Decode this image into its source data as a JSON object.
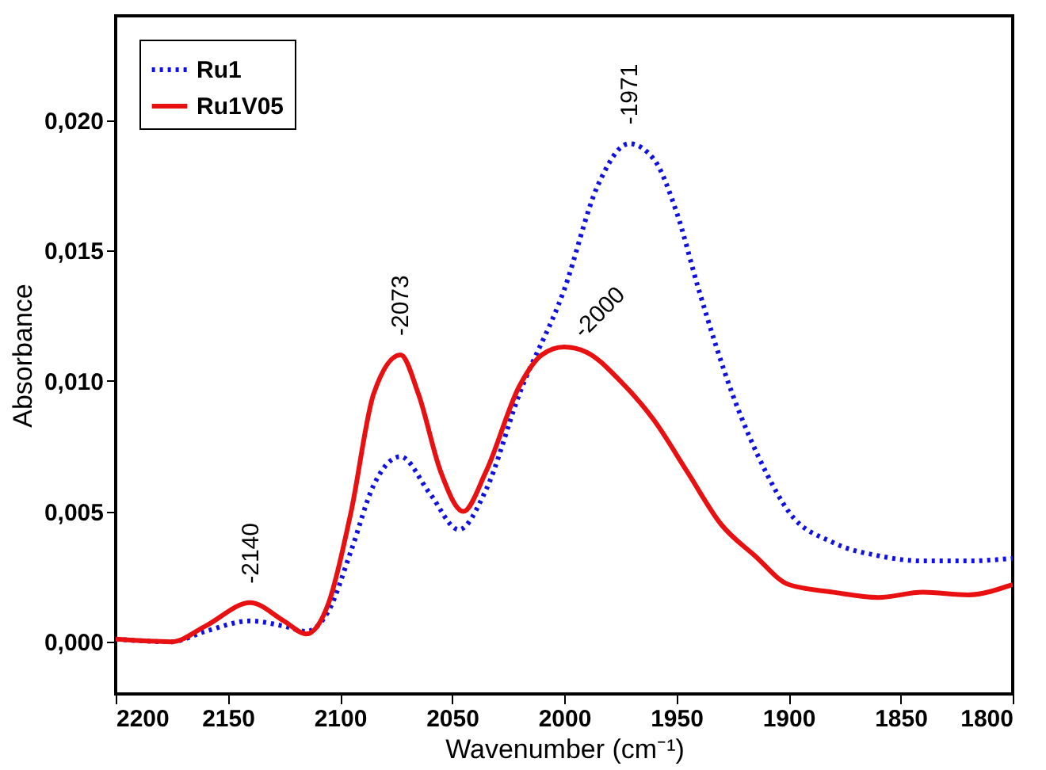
{
  "chart_data": {
    "type": "line",
    "xlabel": "Wavenumber (cm⁻¹)",
    "ylabel": "Absorbance",
    "xlim": [
      2200,
      1800
    ],
    "xticks": [
      2200,
      2150,
      2100,
      2050,
      2000,
      1950,
      1900,
      1850,
      1800
    ],
    "ylim": [
      -0.002,
      0.024
    ],
    "yticks": [
      {
        "value": 0,
        "label": "0,000"
      },
      {
        "value": 0.005,
        "label": "0,005"
      },
      {
        "value": 0.01,
        "label": "0,010"
      },
      {
        "value": 0.015,
        "label": "0,015"
      },
      {
        "value": 0.02,
        "label": "0,020"
      }
    ],
    "legend": "top left",
    "grid": false,
    "marker": "none",
    "series": [
      {
        "name": "Ru1",
        "color": "#1010e0",
        "line_style": "dotted",
        "x": [
          2200,
          2175,
          2160,
          2140,
          2125,
          2115,
          2105,
          2095,
          2085,
          2073,
          2060,
          2047,
          2035,
          2020,
          2000,
          1985,
          1971,
          1960,
          1950,
          1940,
          1925,
          1910,
          1900,
          1880,
          1860,
          1840,
          1820,
          1800
        ],
        "values": [
          0.0001,
          0.0,
          0.0004,
          0.0008,
          0.0006,
          0.0004,
          0.0012,
          0.0035,
          0.006,
          0.0071,
          0.0057,
          0.0043,
          0.0058,
          0.0095,
          0.0135,
          0.0175,
          0.0191,
          0.0185,
          0.0165,
          0.0135,
          0.0095,
          0.0065,
          0.005,
          0.0038,
          0.0033,
          0.0031,
          0.0031,
          0.0032
        ]
      },
      {
        "name": "Ru1V05",
        "color": "#e81010",
        "line_style": "solid",
        "x": [
          2200,
          2175,
          2160,
          2140,
          2125,
          2115,
          2105,
          2095,
          2085,
          2073,
          2065,
          2055,
          2045,
          2035,
          2020,
          2010,
          2000,
          1990,
          1975,
          1960,
          1945,
          1930,
          1915,
          1900,
          1880,
          1860,
          1840,
          1820,
          1800
        ],
        "values": [
          0.0001,
          0.0,
          0.0006,
          0.0015,
          0.0008,
          0.0003,
          0.0015,
          0.005,
          0.0095,
          0.011,
          0.0095,
          0.0065,
          0.005,
          0.0065,
          0.0098,
          0.011,
          0.0113,
          0.0111,
          0.01,
          0.0085,
          0.0065,
          0.0045,
          0.0033,
          0.0022,
          0.0019,
          0.0017,
          0.0019,
          0.0018,
          0.0022
        ]
      }
    ],
    "annotations": [
      {
        "text": "-2140",
        "x": 2140,
        "y": 0.0015
      },
      {
        "text": "-2073",
        "x": 2073,
        "y": 0.011
      },
      {
        "text": "-2000",
        "x": 2000,
        "y": 0.0113
      },
      {
        "text": "-1971",
        "x": 1971,
        "y": 0.0191
      }
    ]
  }
}
